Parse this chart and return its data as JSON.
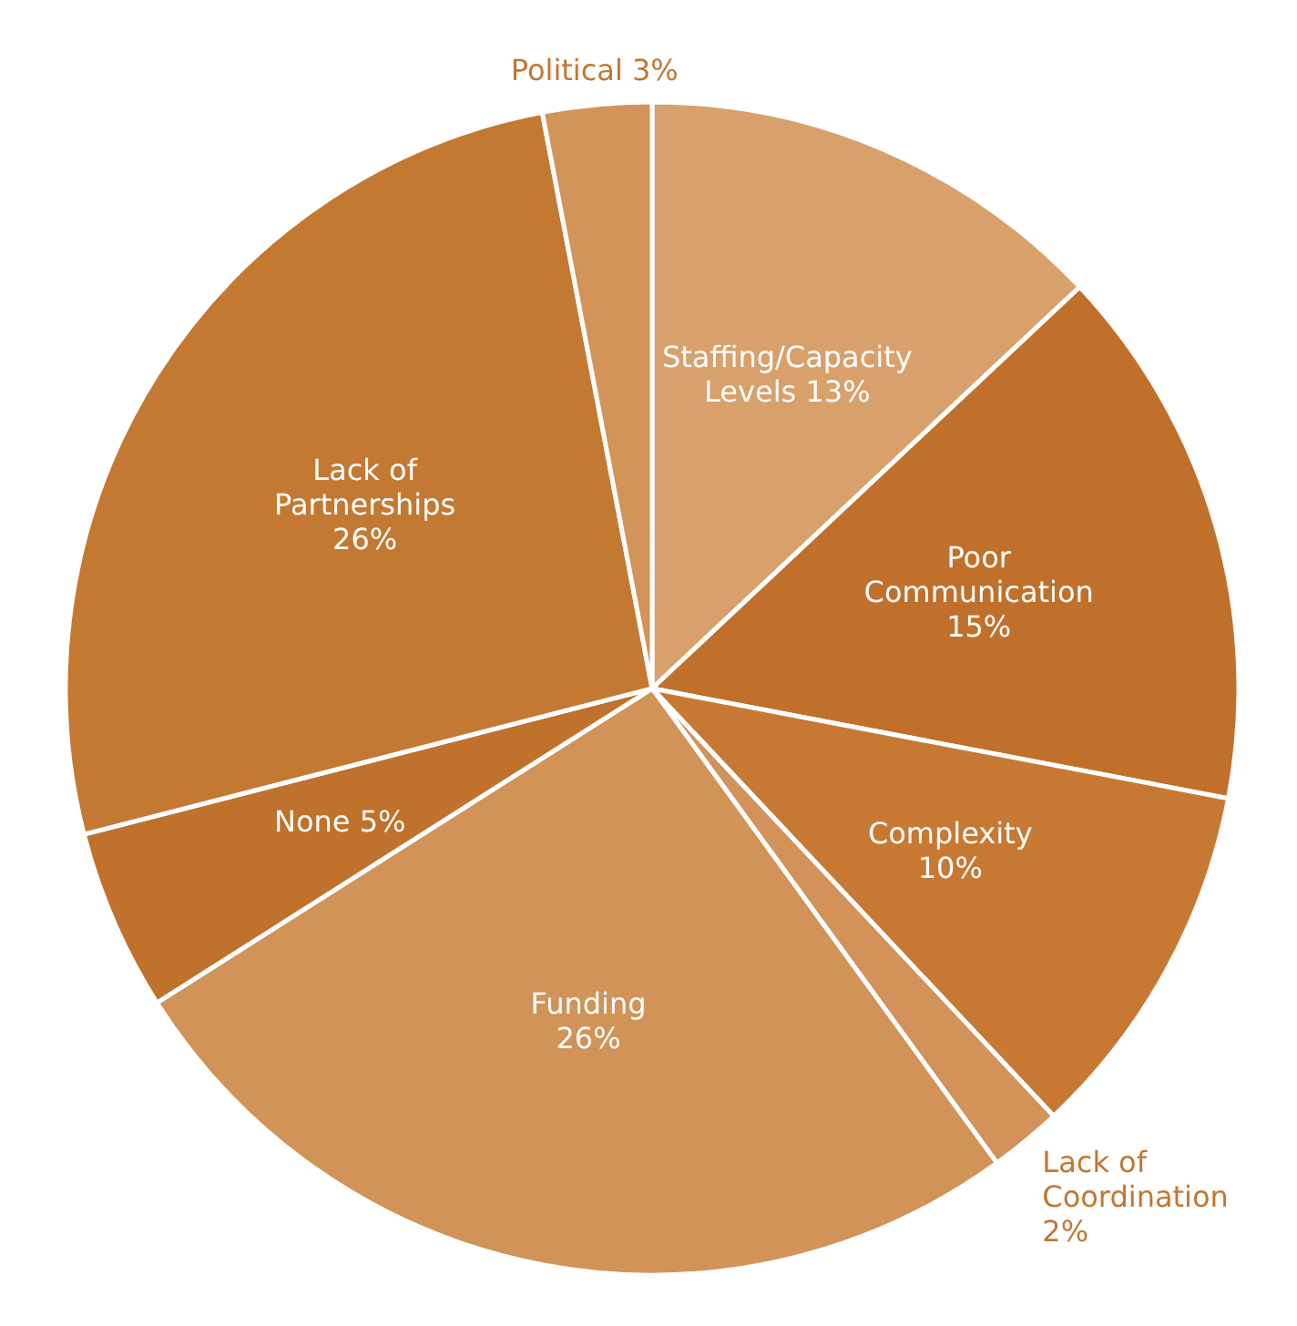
{
  "chart_data": {
    "type": "pie",
    "categories": [
      "Staffing/Capacity Levels",
      "Poor Communication",
      "Complexity",
      "Lack of Coordination",
      "Funding",
      "None",
      "Lack of Partnerships",
      "Political"
    ],
    "values": [
      13,
      15,
      10,
      2,
      26,
      5,
      26,
      3
    ],
    "colors": [
      "#d8a16c",
      "#c0702b",
      "#c77933",
      "#d2925a",
      "#d29358",
      "#c0712b",
      "#c47933",
      "#d3945a"
    ],
    "value_labels": [
      "13%",
      "15%",
      "10%",
      "2%",
      "26%",
      "5%",
      "26%",
      "3%"
    ]
  }
}
